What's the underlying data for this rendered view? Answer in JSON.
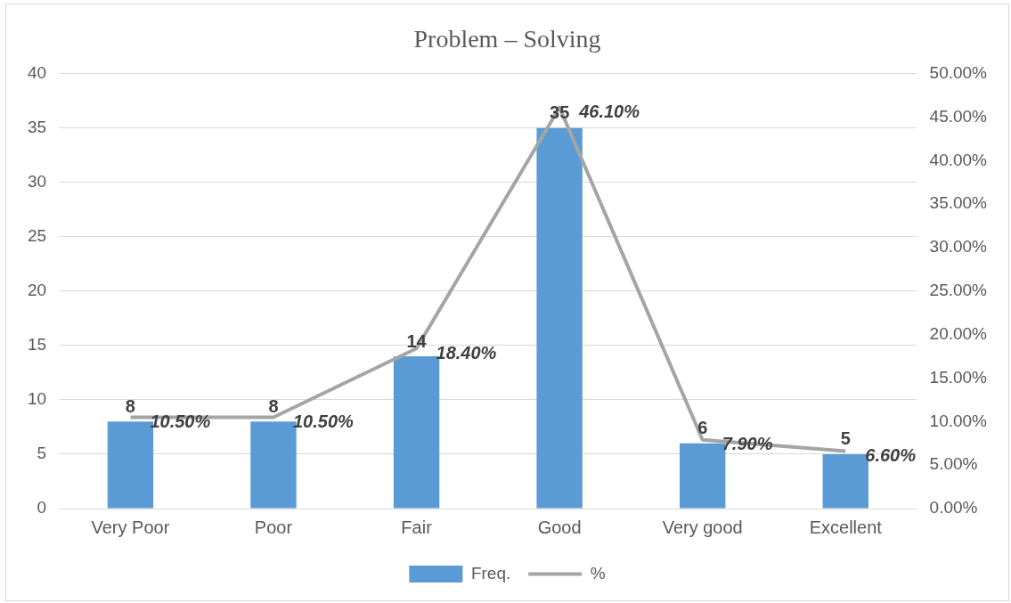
{
  "chart_data": {
    "type": "bar",
    "title": "Problem – Solving",
    "categories": [
      "Very Poor",
      "Poor",
      "Fair",
      "Good",
      "Very good",
      "Excellent"
    ],
    "series": [
      {
        "name": "Freq.",
        "color": "#5b9bd5",
        "values": [
          8,
          8,
          14,
          35,
          6,
          5
        ],
        "value_labels": [
          "8",
          "8",
          "14",
          "35",
          "6",
          "5"
        ]
      },
      {
        "name": "%",
        "type": "line",
        "axis": "y2",
        "color": "#a5a5a5",
        "values": [
          10.5,
          10.5,
          18.4,
          46.1,
          7.9,
          6.6
        ],
        "value_labels": [
          "10.50%",
          "10.50%",
          "18.40%",
          "46.10%",
          "7.90%",
          "6.60%"
        ]
      }
    ],
    "ylim": [
      0,
      40
    ],
    "yticks": [
      0,
      5,
      10,
      15,
      20,
      25,
      30,
      35,
      40
    ],
    "y2lim": [
      0,
      50
    ],
    "y2ticks": [
      {
        "value": 0,
        "label": "0.00%"
      },
      {
        "value": 5,
        "label": "5.00%"
      },
      {
        "value": 10,
        "label": "10.00%"
      },
      {
        "value": 15,
        "label": "15.00%"
      },
      {
        "value": 20,
        "label": "20.00%"
      },
      {
        "value": 25,
        "label": "25.00%"
      },
      {
        "value": 30,
        "label": "30.00%"
      },
      {
        "value": 35,
        "label": "35.00%"
      },
      {
        "value": 40,
        "label": "40.00%"
      },
      {
        "value": 45,
        "label": "45.00%"
      },
      {
        "value": 50,
        "label": "50.00%"
      }
    ],
    "grid": "y",
    "legend": "bottom",
    "marker": "none",
    "line_style": "solid"
  }
}
